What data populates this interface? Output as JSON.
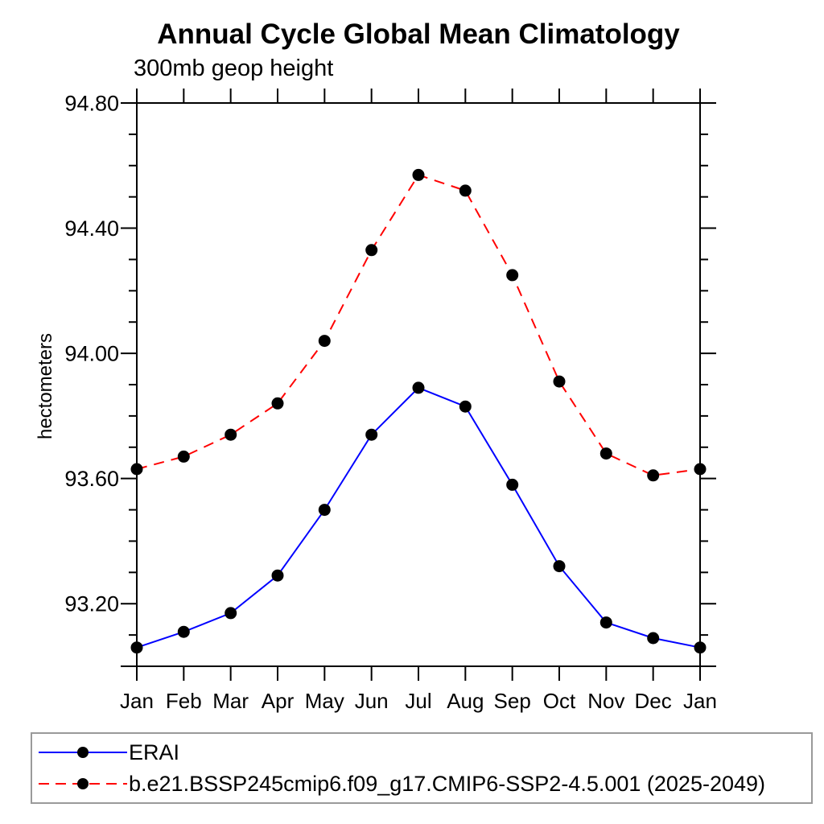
{
  "figure": {
    "title": "Annual Cycle Global Mean Climatology",
    "subtitle": "300mb geop height"
  },
  "chart_data": {
    "type": "line",
    "title": "Annual Cycle Global Mean Climatology",
    "subtitle": "300mb geop height",
    "xlabel": "",
    "ylabel": "hectometers",
    "categories": [
      "Jan",
      "Feb",
      "Mar",
      "Apr",
      "May",
      "Jun",
      "Jul",
      "Aug",
      "Sep",
      "Oct",
      "Nov",
      "Dec",
      "Jan"
    ],
    "ylim": [
      93.0,
      94.8
    ],
    "ytick_major": [
      94.8,
      94.4,
      94.0,
      93.6,
      93.2
    ],
    "ytick_major_labels": [
      "94.80",
      "94.40",
      "94.00",
      "93.60",
      "93.20"
    ],
    "ytick_minor_step": 0.1,
    "grid": false,
    "legend_position": "bottom-left",
    "axis_color": "#000000",
    "series": [
      {
        "name": "ERAI",
        "color": "#0000ff",
        "line_style": "solid",
        "marker": "filled-circle",
        "marker_color": "#000000",
        "values": [
          93.06,
          93.11,
          93.17,
          93.29,
          93.5,
          93.74,
          93.89,
          93.83,
          93.58,
          93.32,
          93.14,
          93.09,
          93.06
        ]
      },
      {
        "name": "b.e21.BSSP245cmip6.f09_g17.CMIP6-SSP2-4.5.001 (2025-2049)",
        "color": "#ff0000",
        "line_style": "dashed",
        "marker": "filled-circle",
        "marker_color": "#000000",
        "values": [
          93.63,
          93.67,
          93.74,
          93.84,
          94.04,
          94.33,
          94.57,
          94.52,
          94.25,
          93.91,
          93.68,
          93.61,
          93.63
        ]
      }
    ]
  }
}
